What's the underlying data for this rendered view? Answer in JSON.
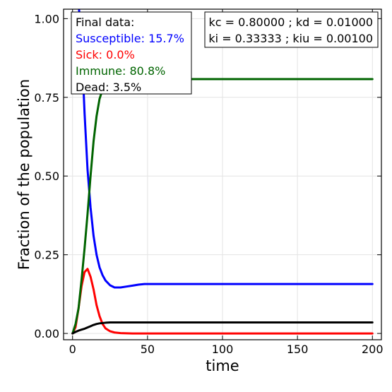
{
  "chart_data": {
    "type": "line",
    "xlabel": "time",
    "ylabel": "Fraction of the population",
    "xlim": [
      -6,
      206
    ],
    "ylim": [
      -0.02,
      1.03
    ],
    "x_ticks": [
      0,
      50,
      100,
      150,
      200
    ],
    "x_tick_labels": [
      "0",
      "50",
      "100",
      "150",
      "200"
    ],
    "y_ticks": [
      0,
      0.25,
      0.5,
      0.75,
      1.0
    ],
    "y_tick_labels": [
      "0.00",
      "0.25",
      "0.50",
      "0.75",
      "1.00"
    ],
    "grid": true,
    "series": [
      {
        "name": "Susceptible",
        "color": "#0000ff",
        "x": [
          0,
          2,
          4,
          6,
          8,
          10,
          12,
          14,
          16,
          18,
          20,
          22,
          25,
          28,
          32,
          36,
          40,
          44,
          48,
          60,
          100,
          150,
          200
        ],
        "y": [
          1.2,
          1.15,
          1.05,
          0.92,
          0.7,
          0.52,
          0.4,
          0.31,
          0.25,
          0.21,
          0.185,
          0.168,
          0.153,
          0.146,
          0.146,
          0.149,
          0.152,
          0.155,
          0.157,
          0.157,
          0.157,
          0.157,
          0.157
        ]
      },
      {
        "name": "Sick",
        "color": "#ff0000",
        "x": [
          0,
          2,
          4,
          6,
          8,
          10,
          12,
          14,
          16,
          18,
          20,
          22,
          25,
          28,
          32,
          40,
          60,
          100,
          150,
          200
        ],
        "y": [
          0.0,
          0.02,
          0.08,
          0.15,
          0.195,
          0.205,
          0.18,
          0.14,
          0.09,
          0.055,
          0.03,
          0.016,
          0.007,
          0.003,
          0.001,
          0.0,
          0.0,
          0.0,
          0.0,
          0.0
        ]
      },
      {
        "name": "Immune",
        "color": "#006400",
        "x": [
          0,
          2,
          4,
          6,
          8,
          10,
          12,
          14,
          16,
          18,
          20,
          22,
          25,
          28,
          32,
          40,
          60,
          100,
          150,
          200
        ],
        "y": [
          0.0,
          0.03,
          0.08,
          0.17,
          0.27,
          0.38,
          0.5,
          0.61,
          0.69,
          0.745,
          0.775,
          0.792,
          0.802,
          0.806,
          0.808,
          0.808,
          0.808,
          0.808,
          0.808,
          0.808
        ]
      },
      {
        "name": "Dead",
        "color": "#000000",
        "x": [
          0,
          2,
          4,
          6,
          8,
          10,
          12,
          14,
          16,
          18,
          20,
          22,
          25,
          30,
          40,
          60,
          100,
          150,
          200
        ],
        "y": [
          0.0,
          0.005,
          0.009,
          0.012,
          0.015,
          0.019,
          0.023,
          0.027,
          0.03,
          0.032,
          0.033,
          0.034,
          0.035,
          0.035,
          0.035,
          0.035,
          0.035,
          0.035,
          0.035
        ]
      }
    ],
    "legend_left": {
      "title": "Final data:",
      "entries": [
        {
          "text": "Susceptible: 15.7%",
          "color": "#0000ff"
        },
        {
          "text": "Sick: 0.0%",
          "color": "#ff0000"
        },
        {
          "text": "Immune: 80.8%",
          "color": "#006400"
        },
        {
          "text": "Dead: 3.5%",
          "color": "#000000"
        }
      ]
    },
    "legend_right": {
      "lines": [
        "kc = 0.80000 ; kd = 0.01000",
        "ki = 0.33333 ; kiu = 0.00100"
      ]
    }
  }
}
